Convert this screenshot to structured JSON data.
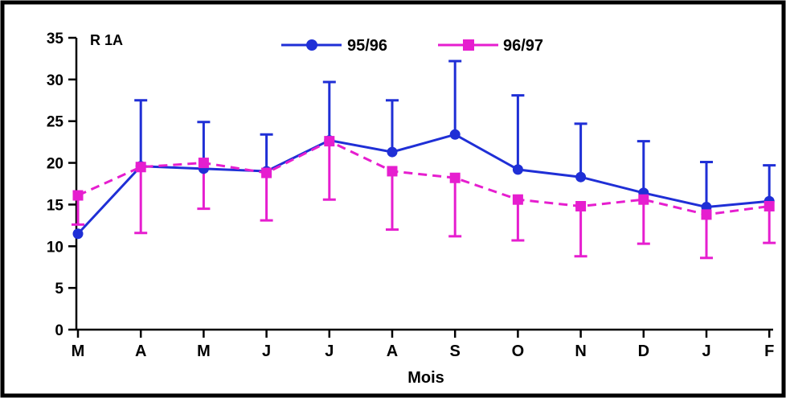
{
  "chart_data": {
    "type": "line",
    "panel_label": "R 1A",
    "xlabel": "Mois",
    "ylabel": "",
    "categories": [
      "M",
      "A",
      "M",
      "J",
      "J",
      "A",
      "S",
      "O",
      "N",
      "D",
      "J",
      "F"
    ],
    "ylim": [
      0,
      35
    ],
    "yticks": [
      0,
      5,
      10,
      15,
      20,
      25,
      30,
      35
    ],
    "grid": false,
    "legend_position": "top",
    "series": [
      {
        "name": "95/96",
        "color": "#1f2fd6",
        "line_style": "solid",
        "marker": "circle",
        "values": [
          11.5,
          19.6,
          19.3,
          19.0,
          22.7,
          21.3,
          23.4,
          19.2,
          18.3,
          16.4,
          14.7,
          15.4
        ],
        "error_upper": [
          null,
          27.5,
          24.9,
          23.4,
          29.7,
          27.5,
          32.2,
          28.1,
          24.7,
          22.6,
          20.1,
          19.7
        ],
        "error_lower": [
          null,
          null,
          null,
          null,
          null,
          null,
          null,
          null,
          null,
          null,
          null,
          null
        ]
      },
      {
        "name": "96/97",
        "color": "#e61ecf",
        "line_style": "dashed",
        "marker": "square",
        "values": [
          16.1,
          19.5,
          20.0,
          18.8,
          22.6,
          19.0,
          18.2,
          15.6,
          14.8,
          15.6,
          13.8,
          14.8
        ],
        "error_upper": [
          null,
          null,
          null,
          null,
          null,
          null,
          null,
          null,
          null,
          null,
          null,
          null
        ],
        "error_lower": [
          12.6,
          11.6,
          14.5,
          13.1,
          15.6,
          12.0,
          11.2,
          10.7,
          8.8,
          10.3,
          8.6,
          10.4
        ]
      }
    ]
  }
}
